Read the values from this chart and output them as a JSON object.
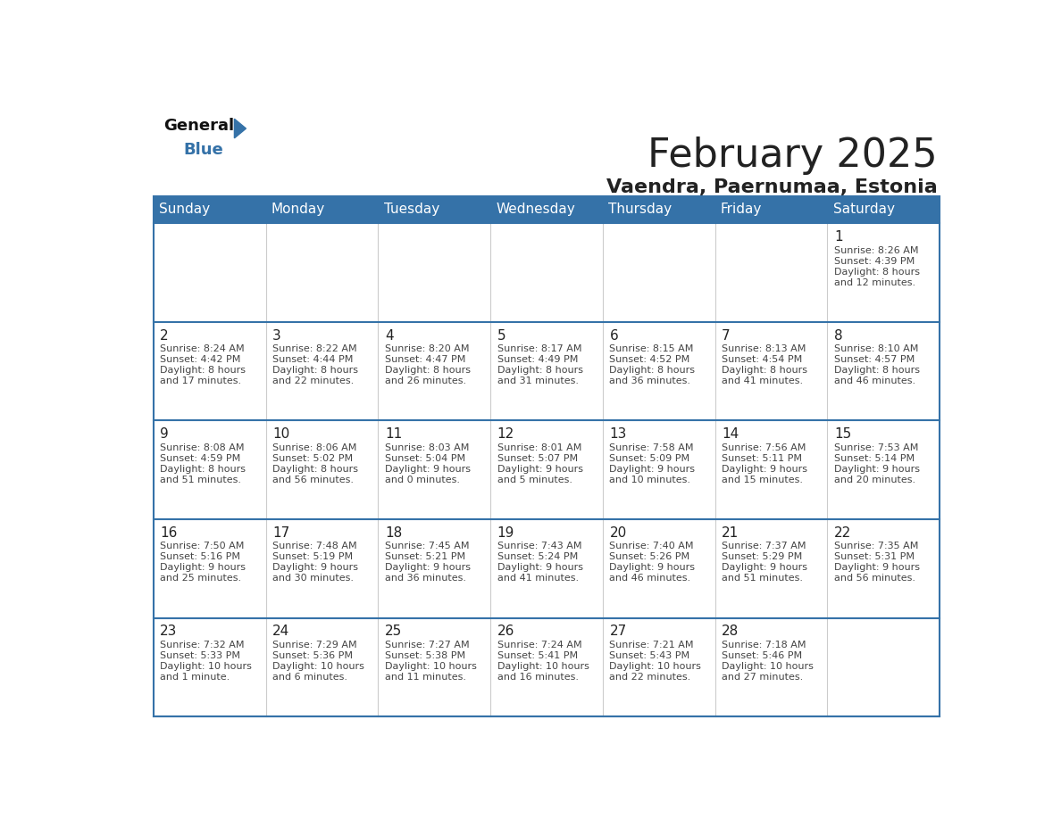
{
  "title": "February 2025",
  "subtitle": "Vaendra, Paernumaa, Estonia",
  "header_color": "#3572a8",
  "header_text_color": "#ffffff",
  "cell_bg_color": "#ffffff",
  "border_color": "#3572a8",
  "row_line_color": "#3572a8",
  "col_line_color": "#cccccc",
  "text_color": "#222222",
  "info_text_color": "#444444",
  "days_of_week": [
    "Sunday",
    "Monday",
    "Tuesday",
    "Wednesday",
    "Thursday",
    "Friday",
    "Saturday"
  ],
  "weeks": [
    [
      {
        "day": null
      },
      {
        "day": null
      },
      {
        "day": null
      },
      {
        "day": null
      },
      {
        "day": null
      },
      {
        "day": null
      },
      {
        "day": 1,
        "sunrise": "8:26 AM",
        "sunset": "4:39 PM",
        "daylight": "8 hours",
        "daylight2": "and 12 minutes."
      }
    ],
    [
      {
        "day": 2,
        "sunrise": "8:24 AM",
        "sunset": "4:42 PM",
        "daylight": "8 hours",
        "daylight2": "and 17 minutes."
      },
      {
        "day": 3,
        "sunrise": "8:22 AM",
        "sunset": "4:44 PM",
        "daylight": "8 hours",
        "daylight2": "and 22 minutes."
      },
      {
        "day": 4,
        "sunrise": "8:20 AM",
        "sunset": "4:47 PM",
        "daylight": "8 hours",
        "daylight2": "and 26 minutes."
      },
      {
        "day": 5,
        "sunrise": "8:17 AM",
        "sunset": "4:49 PM",
        "daylight": "8 hours",
        "daylight2": "and 31 minutes."
      },
      {
        "day": 6,
        "sunrise": "8:15 AM",
        "sunset": "4:52 PM",
        "daylight": "8 hours",
        "daylight2": "and 36 minutes."
      },
      {
        "day": 7,
        "sunrise": "8:13 AM",
        "sunset": "4:54 PM",
        "daylight": "8 hours",
        "daylight2": "and 41 minutes."
      },
      {
        "day": 8,
        "sunrise": "8:10 AM",
        "sunset": "4:57 PM",
        "daylight": "8 hours",
        "daylight2": "and 46 minutes."
      }
    ],
    [
      {
        "day": 9,
        "sunrise": "8:08 AM",
        "sunset": "4:59 PM",
        "daylight": "8 hours",
        "daylight2": "and 51 minutes."
      },
      {
        "day": 10,
        "sunrise": "8:06 AM",
        "sunset": "5:02 PM",
        "daylight": "8 hours",
        "daylight2": "and 56 minutes."
      },
      {
        "day": 11,
        "sunrise": "8:03 AM",
        "sunset": "5:04 PM",
        "daylight": "9 hours",
        "daylight2": "and 0 minutes."
      },
      {
        "day": 12,
        "sunrise": "8:01 AM",
        "sunset": "5:07 PM",
        "daylight": "9 hours",
        "daylight2": "and 5 minutes."
      },
      {
        "day": 13,
        "sunrise": "7:58 AM",
        "sunset": "5:09 PM",
        "daylight": "9 hours",
        "daylight2": "and 10 minutes."
      },
      {
        "day": 14,
        "sunrise": "7:56 AM",
        "sunset": "5:11 PM",
        "daylight": "9 hours",
        "daylight2": "and 15 minutes."
      },
      {
        "day": 15,
        "sunrise": "7:53 AM",
        "sunset": "5:14 PM",
        "daylight": "9 hours",
        "daylight2": "and 20 minutes."
      }
    ],
    [
      {
        "day": 16,
        "sunrise": "7:50 AM",
        "sunset": "5:16 PM",
        "daylight": "9 hours",
        "daylight2": "and 25 minutes."
      },
      {
        "day": 17,
        "sunrise": "7:48 AM",
        "sunset": "5:19 PM",
        "daylight": "9 hours",
        "daylight2": "and 30 minutes."
      },
      {
        "day": 18,
        "sunrise": "7:45 AM",
        "sunset": "5:21 PM",
        "daylight": "9 hours",
        "daylight2": "and 36 minutes."
      },
      {
        "day": 19,
        "sunrise": "7:43 AM",
        "sunset": "5:24 PM",
        "daylight": "9 hours",
        "daylight2": "and 41 minutes."
      },
      {
        "day": 20,
        "sunrise": "7:40 AM",
        "sunset": "5:26 PM",
        "daylight": "9 hours",
        "daylight2": "and 46 minutes."
      },
      {
        "day": 21,
        "sunrise": "7:37 AM",
        "sunset": "5:29 PM",
        "daylight": "9 hours",
        "daylight2": "and 51 minutes."
      },
      {
        "day": 22,
        "sunrise": "7:35 AM",
        "sunset": "5:31 PM",
        "daylight": "9 hours",
        "daylight2": "and 56 minutes."
      }
    ],
    [
      {
        "day": 23,
        "sunrise": "7:32 AM",
        "sunset": "5:33 PM",
        "daylight": "10 hours",
        "daylight2": "and 1 minute."
      },
      {
        "day": 24,
        "sunrise": "7:29 AM",
        "sunset": "5:36 PM",
        "daylight": "10 hours",
        "daylight2": "and 6 minutes."
      },
      {
        "day": 25,
        "sunrise": "7:27 AM",
        "sunset": "5:38 PM",
        "daylight": "10 hours",
        "daylight2": "and 11 minutes."
      },
      {
        "day": 26,
        "sunrise": "7:24 AM",
        "sunset": "5:41 PM",
        "daylight": "10 hours",
        "daylight2": "and 16 minutes."
      },
      {
        "day": 27,
        "sunrise": "7:21 AM",
        "sunset": "5:43 PM",
        "daylight": "10 hours",
        "daylight2": "and 22 minutes."
      },
      {
        "day": 28,
        "sunrise": "7:18 AM",
        "sunset": "5:46 PM",
        "daylight": "10 hours",
        "daylight2": "and 27 minutes."
      },
      {
        "day": null
      }
    ]
  ],
  "logo_general_color": "#111111",
  "logo_blue_color": "#3572a8",
  "logo_triangle_color": "#3572a8",
  "title_fontsize": 32,
  "subtitle_fontsize": 16,
  "header_fontsize": 11,
  "day_num_fontsize": 11,
  "info_fontsize": 8
}
